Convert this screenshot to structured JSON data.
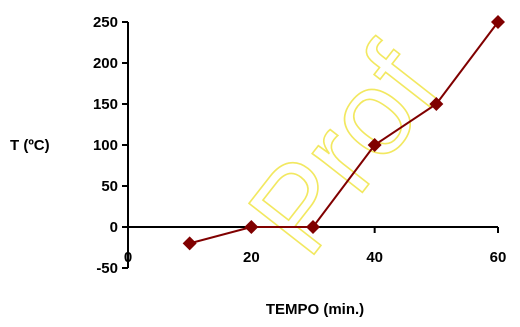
{
  "chart_data": {
    "type": "line",
    "xlabel": "TEMPO (min.)",
    "ylabel": "T (ºC)",
    "x": [
      10,
      20,
      30,
      40,
      50,
      60
    ],
    "series": [
      {
        "values": [
          -20,
          0,
          0,
          100,
          150,
          250
        ],
        "color": "#800000",
        "marker": "diamond"
      }
    ],
    "xlim": [
      0,
      60
    ],
    "ylim": [
      -50,
      250
    ],
    "xticks": [
      0,
      20,
      40,
      60
    ],
    "yticks": [
      -50,
      0,
      50,
      100,
      150,
      200,
      250
    ],
    "grid": false
  },
  "watermark": {
    "text": "Prof",
    "color": "#f2e860"
  }
}
